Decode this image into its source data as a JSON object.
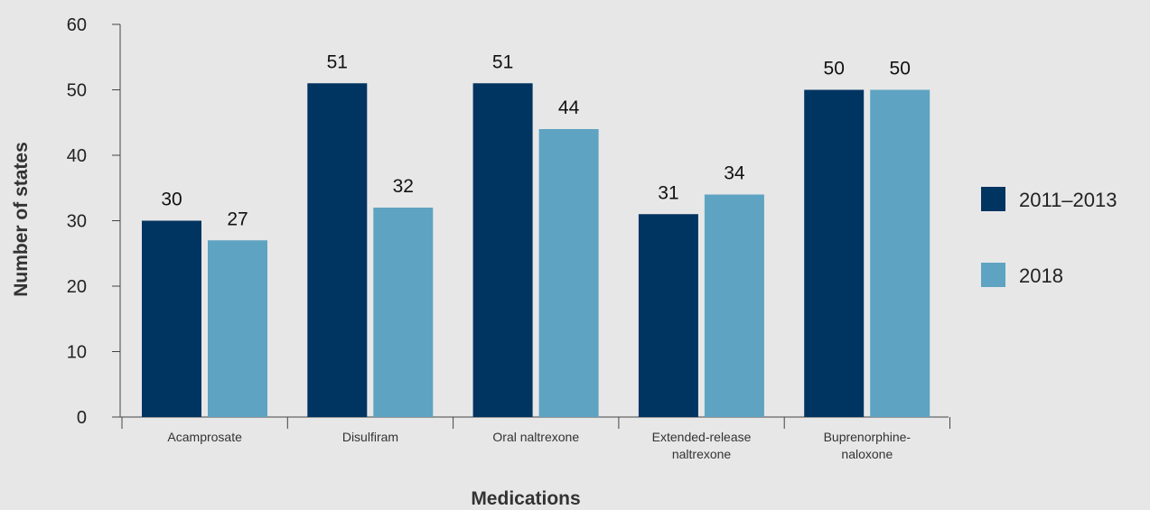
{
  "chart_data": {
    "type": "bar",
    "categories": [
      [
        "Acamprosate"
      ],
      [
        "Disulfiram"
      ],
      [
        "Oral naltrexone"
      ],
      [
        "Extended-release",
        "naltrexone"
      ],
      [
        "Buprenorphine-",
        "naloxone"
      ]
    ],
    "series": [
      {
        "name": "2011–2013",
        "values": [
          30,
          51,
          51,
          31,
          50
        ],
        "color": "#003461"
      },
      {
        "name": "2018",
        "values": [
          27,
          32,
          44,
          34,
          50
        ],
        "color": "#5ea3c1"
      }
    ],
    "xlabel": "Medications",
    "ylabel": "Number of states",
    "ylim": [
      0,
      60
    ],
    "yticks": [
      0,
      10,
      20,
      30,
      40,
      50,
      60
    ],
    "grid": false,
    "legend_position": "right",
    "data_labels": true
  }
}
